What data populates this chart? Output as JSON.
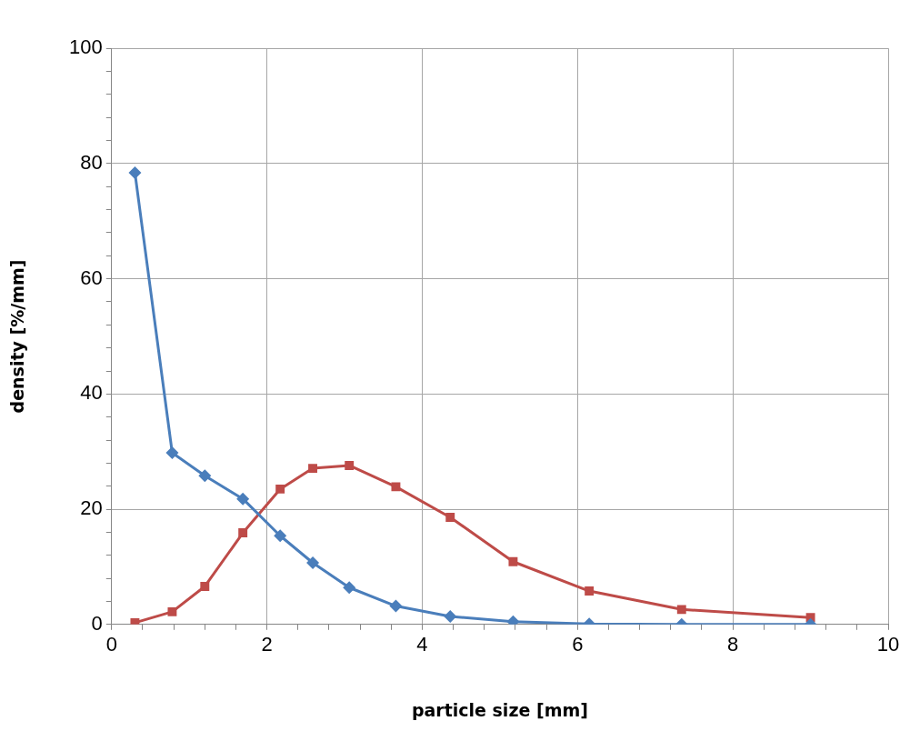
{
  "chart_data": {
    "type": "line",
    "xlabel": "particle size [mm]",
    "ylabel": "density [%/mm]",
    "xlim": [
      0,
      10
    ],
    "ylim": [
      0,
      100
    ],
    "xticks": [
      0,
      {
        "value": 0.4,
        "label": null
      },
      {
        "value": 0.8,
        "label": null
      },
      {
        "value": 1.2,
        "label": null
      },
      {
        "value": 1.6,
        "label": null
      },
      2,
      {
        "value": 2.4,
        "label": null
      },
      {
        "value": 2.8,
        "label": null
      },
      {
        "value": 3.2,
        "label": null
      },
      {
        "value": 3.6,
        "label": null
      },
      4,
      {
        "value": 4.4,
        "label": null
      },
      {
        "value": 4.8,
        "label": null
      },
      {
        "value": 5.2,
        "label": null
      },
      {
        "value": 5.6,
        "label": null
      },
      6,
      {
        "value": 6.4,
        "label": null
      },
      {
        "value": 6.8,
        "label": null
      },
      {
        "value": 7.2,
        "label": null
      },
      {
        "value": 7.6,
        "label": null
      },
      8,
      {
        "value": 8.4,
        "label": null
      },
      {
        "value": 8.8,
        "label": null
      },
      {
        "value": 9.2,
        "label": null
      },
      {
        "value": 9.6,
        "label": null
      },
      10
    ],
    "yticks": [
      0,
      {
        "value": 4,
        "label": null
      },
      {
        "value": 8,
        "label": null
      },
      {
        "value": 12,
        "label": null
      },
      {
        "value": 16,
        "label": null
      },
      20,
      {
        "value": 24,
        "label": null
      },
      {
        "value": 28,
        "label": null
      },
      {
        "value": 32,
        "label": null
      },
      {
        "value": 36,
        "label": null
      },
      40,
      {
        "value": 44,
        "label": null
      },
      {
        "value": 48,
        "label": null
      },
      {
        "value": 52,
        "label": null
      },
      {
        "value": 56,
        "label": null
      },
      60,
      {
        "value": 64,
        "label": null
      },
      {
        "value": 68,
        "label": null
      },
      {
        "value": 72,
        "label": null
      },
      {
        "value": 76,
        "label": null
      },
      80,
      {
        "value": 84,
        "label": null
      },
      {
        "value": 88,
        "label": null
      },
      {
        "value": 92,
        "label": null
      },
      {
        "value": 96,
        "label": null
      },
      100
    ],
    "grid": true,
    "legend": false,
    "line_style": "solid",
    "x": [
      0.3,
      0.78,
      1.2,
      1.69,
      2.17,
      2.59,
      3.06,
      3.66,
      4.36,
      5.17,
      6.15,
      7.34,
      9.0
    ],
    "series": [
      {
        "color": "#4a7ebb",
        "marker": "diamond",
        "values": [
          78.4,
          29.8,
          25.8,
          21.8,
          15.4,
          10.7,
          6.4,
          3.2,
          1.4,
          0.5,
          0.1,
          0,
          0
        ]
      },
      {
        "color": "#be4b48",
        "marker": "square",
        "values": [
          0.3,
          2.2,
          6.6,
          15.9,
          23.5,
          27.1,
          27.6,
          23.9,
          18.6,
          10.9,
          5.8,
          2.6,
          1.2
        ]
      }
    ]
  }
}
